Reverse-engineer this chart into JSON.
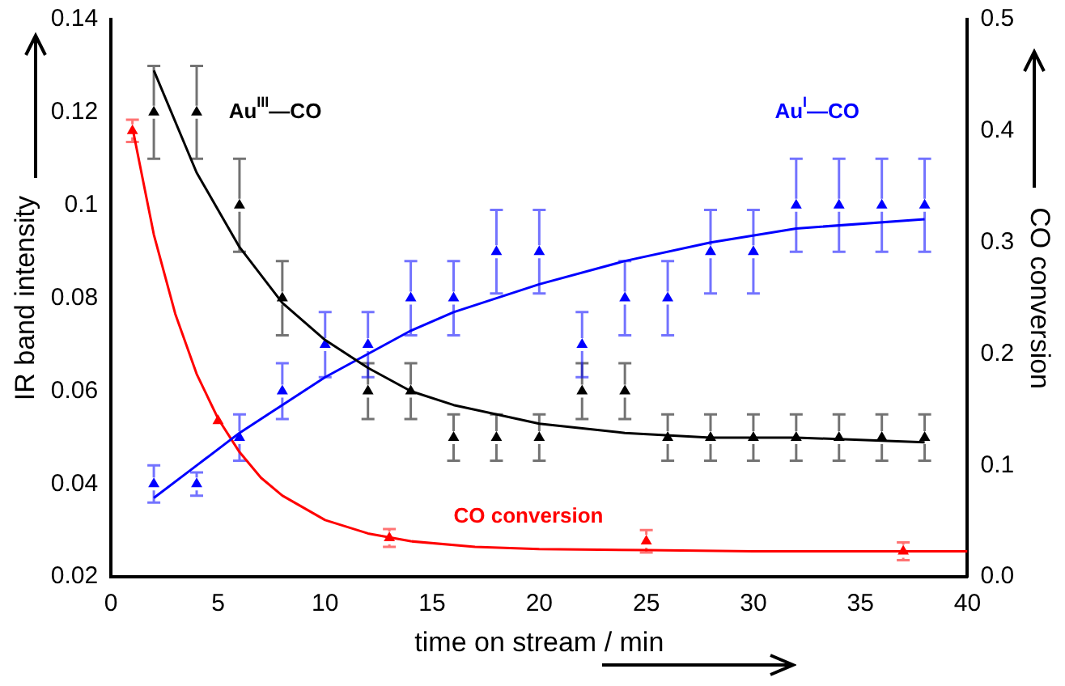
{
  "chart_data": {
    "type": "scatter",
    "xlabel": "time on stream / min",
    "ylabel": "IR band intensity",
    "y2label": "CO conversion",
    "xlim": [
      0,
      40
    ],
    "xticks": [
      0,
      5,
      10,
      15,
      20,
      25,
      30,
      35,
      40
    ],
    "ylim": [
      0.02,
      0.14
    ],
    "yticks": [
      0.02,
      0.04,
      0.06,
      0.08,
      0.1,
      0.12,
      0.14
    ],
    "y2lim": [
      0,
      0.5
    ],
    "y2ticks": [
      {
        "value": 0,
        "label": "0.0"
      },
      {
        "value": 0.1,
        "label": "0.1"
      },
      {
        "value": 0.2,
        "label": "0.2"
      },
      {
        "value": 0.3,
        "label": "0.3"
      },
      {
        "value": 0.4,
        "label": "0.4"
      },
      {
        "value": 0.5,
        "label": "0.5"
      }
    ],
    "grid": false,
    "legend": false,
    "marker": "triangle",
    "series": [
      {
        "type": "scatter",
        "name": "Au$^{III}$—CO",
        "color": "#000000",
        "x": [
          2,
          4,
          6,
          8,
          12,
          14,
          16,
          18,
          20,
          22,
          24,
          26,
          28,
          30,
          32,
          34,
          36,
          38
        ],
        "values": [
          0.12,
          0.12,
          0.1,
          0.08,
          0.06,
          0.06,
          0.05,
          0.05,
          0.05,
          0.06,
          0.06,
          0.05,
          0.05,
          0.05,
          0.05,
          0.05,
          0.05,
          0.05
        ],
        "errors": [
          0.01,
          0.01,
          0.01,
          0.008,
          0.006,
          0.006,
          0.005,
          0.005,
          0.005,
          0.006,
          0.006,
          0.005,
          0.005,
          0.005,
          0.005,
          0.005,
          0.005,
          0.005
        ]
      },
      {
        "type": "line",
        "marker": "none",
        "color": "#000000",
        "x": [
          2,
          4,
          6,
          8,
          10,
          12,
          14,
          16,
          20,
          24,
          28,
          32,
          38
        ],
        "values": [
          0.129,
          0.107,
          0.091,
          0.079,
          0.071,
          0.065,
          0.06,
          0.057,
          0.053,
          0.051,
          0.05,
          0.05,
          0.049
        ]
      },
      {
        "type": "scatter",
        "name": "Au$^{I}$—CO",
        "color": "#0000ff",
        "x": [
          2,
          4,
          6,
          8,
          10,
          12,
          14,
          16,
          18,
          20,
          22,
          24,
          26,
          28,
          30,
          32,
          34,
          36,
          38
        ],
        "values": [
          0.04,
          0.04,
          0.05,
          0.06,
          0.07,
          0.07,
          0.08,
          0.08,
          0.09,
          0.09,
          0.07,
          0.08,
          0.08,
          0.09,
          0.09,
          0.1,
          0.1,
          0.1,
          0.1
        ],
        "errors": [
          0.004,
          0.0025,
          0.005,
          0.006,
          0.007,
          0.007,
          0.008,
          0.008,
          0.009,
          0.009,
          0.007,
          0.008,
          0.008,
          0.009,
          0.009,
          0.01,
          0.01,
          0.01,
          0.01
        ]
      },
      {
        "type": "line",
        "marker": "none",
        "color": "#0000ff",
        "x": [
          2,
          4,
          6,
          8,
          10,
          12,
          14,
          16,
          18,
          20,
          24,
          28,
          32,
          38
        ],
        "values": [
          0.037,
          0.044,
          0.051,
          0.057,
          0.063,
          0.068,
          0.073,
          0.077,
          0.08,
          0.083,
          0.088,
          0.092,
          0.095,
          0.097
        ]
      },
      {
        "type": "scatter",
        "name": "CO conversion",
        "color": "#ff0000",
        "axis": "y2",
        "x": [
          1,
          5,
          13,
          25,
          37
        ],
        "values": [
          0.4,
          0.14,
          0.035,
          0.032,
          0.023
        ],
        "errors": [
          0.01,
          null,
          0.008,
          0.01,
          0.008
        ]
      },
      {
        "type": "line",
        "marker": "none",
        "color": "#ff0000",
        "axis": "y2",
        "x": [
          1,
          2,
          3,
          4,
          5,
          6,
          7,
          8,
          10,
          12,
          14,
          17,
          20,
          25,
          30,
          40
        ],
        "values": [
          0.403,
          0.307,
          0.236,
          0.182,
          0.142,
          0.112,
          0.089,
          0.073,
          0.051,
          0.039,
          0.032,
          0.027,
          0.025,
          0.024,
          0.023,
          0.023
        ]
      }
    ]
  }
}
